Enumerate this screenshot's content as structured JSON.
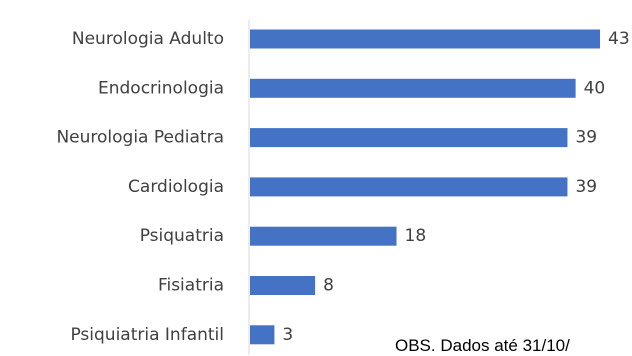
{
  "chart_data": {
    "type": "bar",
    "orientation": "horizontal",
    "categories": [
      "Neurologia Adulto",
      "Endocrinologia",
      "Neurologia Pediatra",
      "Cardiologia",
      "Psiquatria",
      "Fisiatria",
      "Psiquiatria Infantil"
    ],
    "values": [
      43,
      40,
      39,
      39,
      18,
      8,
      3
    ],
    "bar_color": "#4472C4",
    "data_labels": true,
    "grid": false,
    "legend": "none"
  },
  "note": "OBS. Dados até 31/10/"
}
